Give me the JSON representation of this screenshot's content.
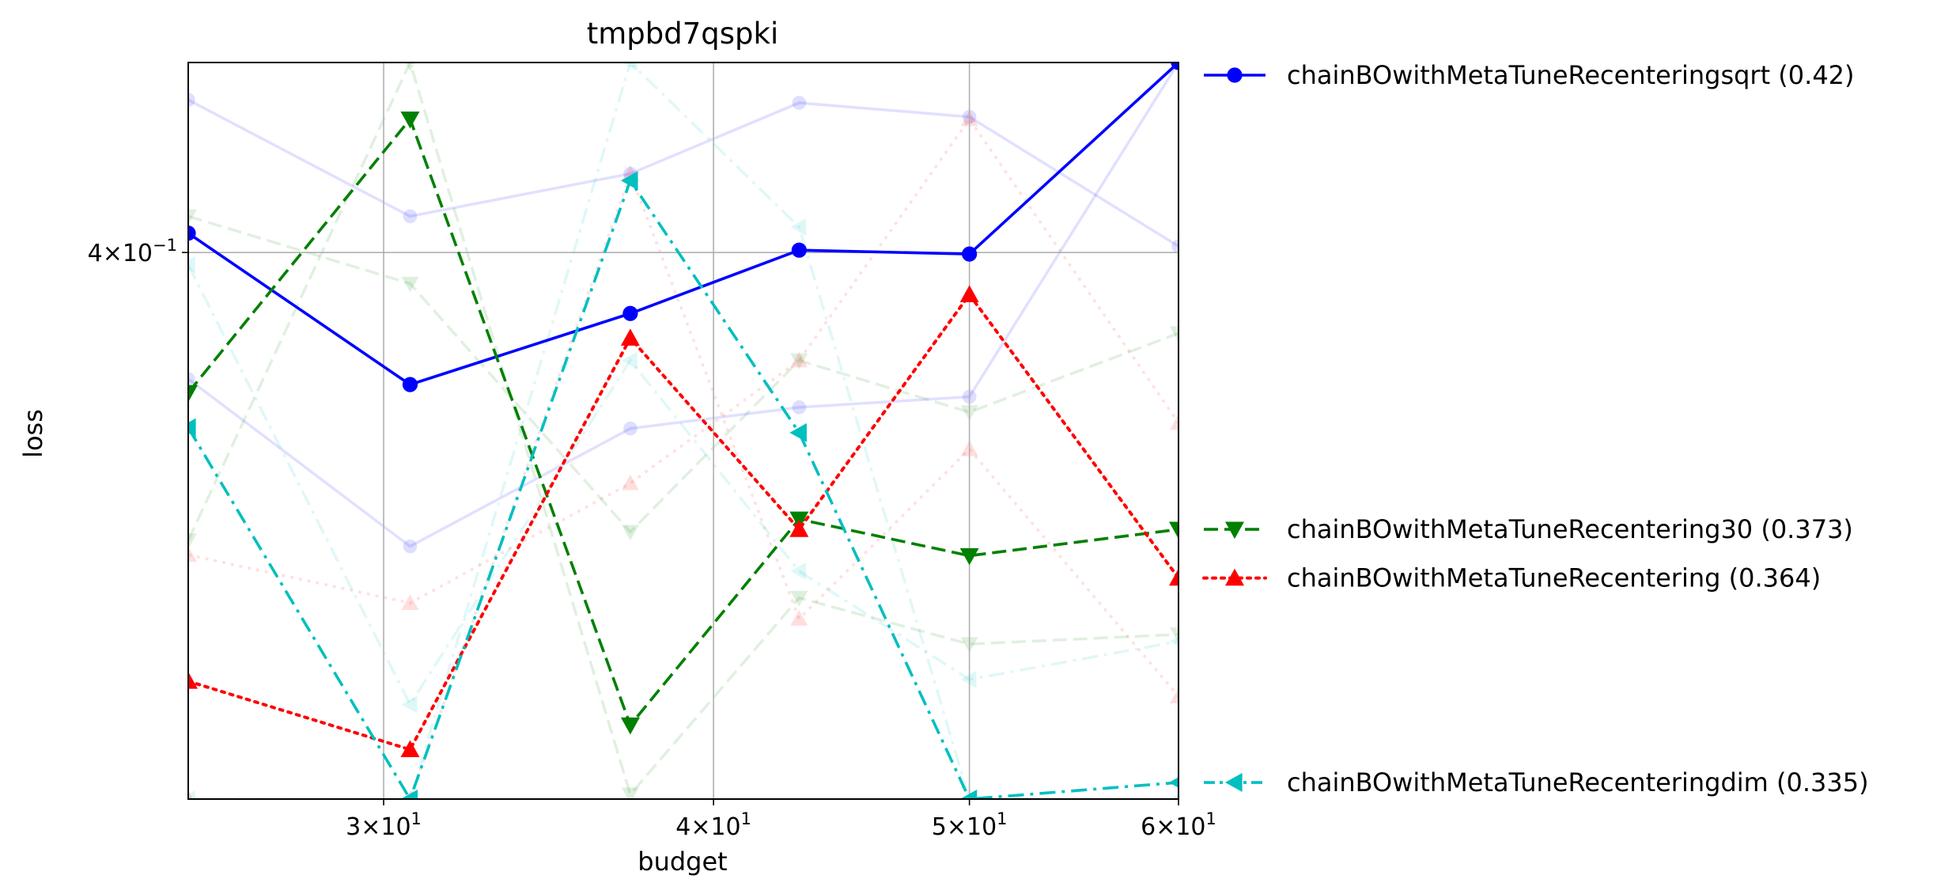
{
  "chart_data": {
    "type": "line",
    "title": "tmpbd7qspki",
    "xlabel": "budget",
    "ylabel": "loss",
    "x_scale": "log",
    "y_scale": "log",
    "xlim": [
      25.3,
      60
    ],
    "ylim": [
      0.3353,
      0.4253
    ],
    "grid": true,
    "x_ticks": [
      {
        "value": 30,
        "mantissa": "3",
        "exponent": "1"
      },
      {
        "value": 40,
        "mantissa": "4",
        "exponent": "1"
      },
      {
        "value": 50,
        "mantissa": "5",
        "exponent": "1"
      },
      {
        "value": 60,
        "mantissa": "6",
        "exponent": "1"
      }
    ],
    "y_ticks": [
      {
        "value": 0.4,
        "mantissa": "4",
        "exponent": "−1"
      }
    ],
    "legend_position": "outside-right",
    "series": [
      {
        "name": "chainBOwithMetaTuneRecenteringsqrt (0.42)",
        "color": "#0000ff",
        "linestyle": "solid",
        "marker": "circle",
        "x": [
          25.3,
          30.7,
          37.2,
          43.1,
          50.0,
          60.0
        ],
        "y": [
          0.4025,
          0.3833,
          0.3922,
          0.4003,
          0.3998,
          0.4253
        ]
      },
      {
        "name": "chainBOwithMetaTuneRecentering30 (0.373)",
        "color": "#008000",
        "linestyle": "dashed",
        "marker": "triangle-down",
        "x": [
          25.3,
          30.7,
          37.2,
          43.1,
          50.0,
          60.0
        ],
        "y": [
          0.3823,
          0.4176,
          0.3434,
          0.367,
          0.3627,
          0.3658
        ]
      },
      {
        "name": "chainBOwithMetaTuneRecentering (0.364)",
        "color": "#ff0000",
        "linestyle": "dotted",
        "marker": "triangle-up",
        "x": [
          25.3,
          30.7,
          37.2,
          43.1,
          50.0,
          60.0
        ],
        "y": [
          0.3483,
          0.3407,
          0.3891,
          0.3658,
          0.3946,
          0.3601
        ]
      },
      {
        "name": "chainBOwithMetaTuneRecenteringdim (0.335)",
        "color": "#00bfbf",
        "linestyle": "dashdot",
        "marker": "triangle-left",
        "x": [
          25.3,
          30.7,
          37.2,
          43.1,
          50.0,
          60.0
        ],
        "y": [
          0.378,
          0.3353,
          0.4094,
          0.3774,
          0.3353,
          0.3371
        ]
      }
    ],
    "background_series": [
      {
        "color": "#0000ff",
        "linestyle": "solid",
        "marker": "circle",
        "x": [
          25.3,
          30.7,
          37.2,
          43.1,
          50.0,
          60.0
        ],
        "y": [
          0.4202,
          0.4047,
          0.4103,
          0.4198,
          0.4179,
          0.4008
        ]
      },
      {
        "color": "#0000ff",
        "linestyle": "solid",
        "marker": "circle",
        "x": [
          25.3,
          30.7,
          37.2,
          43.1,
          50.0,
          60.0
        ],
        "y": [
          0.384,
          0.3638,
          0.3779,
          0.3805,
          0.3818,
          0.4253
        ]
      },
      {
        "color": "#008000",
        "linestyle": "dashed",
        "marker": "triangle-down",
        "x": [
          25.3,
          30.7,
          37.2,
          43.1,
          50.0,
          60.0
        ],
        "y": [
          0.4047,
          0.396,
          0.3655,
          0.3863,
          0.3799,
          0.3897
        ]
      },
      {
        "color": "#008000",
        "linestyle": "dashed",
        "marker": "triangle-down",
        "x": [
          25.3,
          30.7,
          37.2,
          43.1,
          50.0,
          60.0
        ],
        "y": [
          0.3645,
          0.4253,
          0.3358,
          0.3578,
          0.3525,
          0.3536
        ]
      },
      {
        "color": "#ff0000",
        "linestyle": "dotted",
        "marker": "triangle-up",
        "x": [
          25.3,
          30.7,
          37.2,
          43.1,
          50.0,
          60.0
        ],
        "y": [
          0.3628,
          0.3572,
          0.3713,
          0.3863,
          0.4176,
          0.3786
        ]
      },
      {
        "color": "#ff0000",
        "linestyle": "dotted",
        "marker": "triangle-up",
        "x": [
          25.3,
          30.7,
          37.2,
          43.1,
          50.0,
          60.0
        ],
        "y": [
          0.3353,
          0.3353,
          0.4103,
          0.3554,
          0.3754,
          0.3466
        ]
      },
      {
        "color": "#00bfbf",
        "linestyle": "dashdot",
        "marker": "triangle-left",
        "x": [
          25.3,
          30.7,
          37.2,
          43.1,
          50.0,
          60.0
        ],
        "y": [
          0.3984,
          0.3457,
          0.3863,
          0.3609,
          0.3485,
          0.3528
        ]
      },
      {
        "color": "#00bfbf",
        "linestyle": "dashdot",
        "marker": "triangle-left",
        "x": [
          25.3,
          30.7,
          37.2,
          43.1,
          50.0,
          60.0
        ],
        "y": [
          0.3353,
          0.3353,
          0.4253,
          0.4033,
          0.3353,
          0.3353
        ]
      }
    ]
  }
}
